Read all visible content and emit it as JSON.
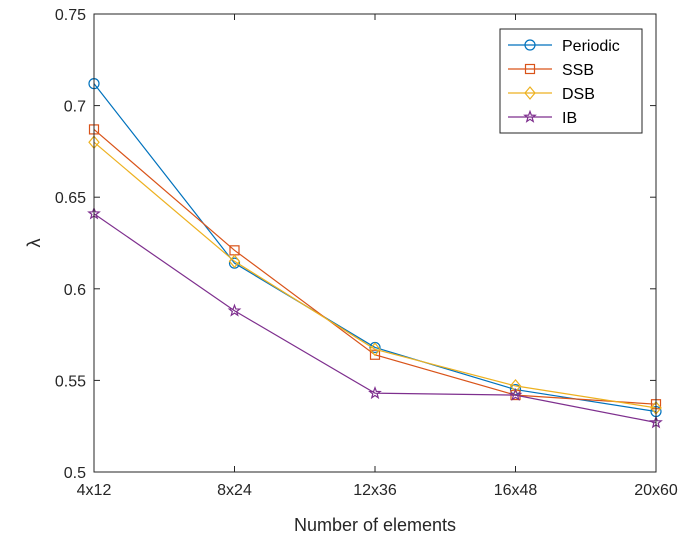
{
  "chart_data": {
    "type": "line",
    "categories": [
      "4x12",
      "8x24",
      "12x36",
      "16x48",
      "20x60"
    ],
    "series": [
      {
        "name": "Periodic",
        "values": [
          0.712,
          0.614,
          0.568,
          0.545,
          0.533
        ],
        "color": "#0072BD",
        "marker": "circle"
      },
      {
        "name": "SSB",
        "values": [
          0.687,
          0.621,
          0.564,
          0.542,
          0.537
        ],
        "color": "#D95319",
        "marker": "square"
      },
      {
        "name": "DSB",
        "values": [
          0.68,
          0.615,
          0.567,
          0.547,
          0.535
        ],
        "color": "#EDB120",
        "marker": "diamond"
      },
      {
        "name": "IB",
        "values": [
          0.641,
          0.588,
          0.543,
          0.542,
          0.527
        ],
        "color": "#7E2F8E",
        "marker": "pentagram"
      }
    ],
    "xlabel": "Number of elements",
    "ylabel": "λ",
    "ylim": [
      0.5,
      0.75
    ],
    "yticks": [
      "0.5",
      "0.55",
      "0.6",
      "0.65",
      "0.7",
      "0.75"
    ],
    "ytick_values": [
      0.5,
      0.55,
      0.6,
      0.65,
      0.7,
      0.75
    ],
    "grid": false,
    "legend_position": "top-right"
  }
}
